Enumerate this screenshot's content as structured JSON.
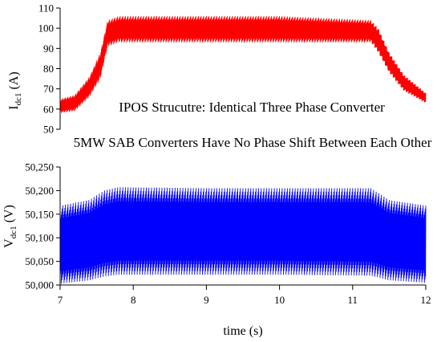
{
  "chart_data": [
    {
      "type": "line",
      "ylabel_main": "I",
      "ylabel_sub": "dc1",
      "ylabel_unit": "(A)",
      "ylim": [
        50,
        110
      ],
      "yticks": [
        50,
        60,
        70,
        80,
        90,
        100,
        110
      ],
      "ytick_labels": [
        "50",
        "60",
        "70",
        "80",
        "90",
        "100",
        "110"
      ],
      "color": "#ff0000",
      "grid": false,
      "series": [
        {
          "envelope": [
            {
              "x": 7.0,
              "min": 58,
              "max": 65
            },
            {
              "x": 7.2,
              "min": 59,
              "max": 67
            },
            {
              "x": 7.4,
              "min": 66,
              "max": 76
            },
            {
              "x": 7.55,
              "min": 75,
              "max": 88
            },
            {
              "x": 7.65,
              "min": 91,
              "max": 104
            },
            {
              "x": 7.8,
              "min": 93,
              "max": 106
            },
            {
              "x": 9.0,
              "min": 93,
              "max": 106
            },
            {
              "x": 10.0,
              "min": 93,
              "max": 106
            },
            {
              "x": 11.25,
              "min": 93,
              "max": 104
            },
            {
              "x": 11.35,
              "min": 88,
              "max": 100
            },
            {
              "x": 11.5,
              "min": 78,
              "max": 88
            },
            {
              "x": 11.7,
              "min": 69,
              "max": 77
            },
            {
              "x": 12.0,
              "min": 63,
              "max": 68
            }
          ]
        }
      ]
    },
    {
      "type": "line",
      "ylabel_main": "V",
      "ylabel_sub": "dc1",
      "ylabel_unit": "(V)",
      "ylim": [
        50000,
        50250
      ],
      "yticks": [
        50000,
        50050,
        50100,
        50150,
        50200,
        50250
      ],
      "ytick_labels": [
        "50,000",
        "50,050",
        "50,100",
        "50,150",
        "50,200",
        "50,250"
      ],
      "xlabel": "time (s)",
      "xlim": [
        7,
        12
      ],
      "xticks": [
        7,
        8,
        9,
        10,
        11,
        12
      ],
      "xtick_labels": [
        "7",
        "8",
        "9",
        "10",
        "11",
        "12"
      ],
      "color": "#0000ff",
      "grid": false,
      "series": [
        {
          "envelope": [
            {
              "x": 7.0,
              "min": 50003,
              "max": 50168
            },
            {
              "x": 7.4,
              "min": 50010,
              "max": 50180
            },
            {
              "x": 7.6,
              "min": 50018,
              "max": 50200
            },
            {
              "x": 7.8,
              "min": 50022,
              "max": 50207
            },
            {
              "x": 9.0,
              "min": 50022,
              "max": 50205
            },
            {
              "x": 10.0,
              "min": 50022,
              "max": 50205
            },
            {
              "x": 11.25,
              "min": 50020,
              "max": 50205
            },
            {
              "x": 11.5,
              "min": 50010,
              "max": 50180
            },
            {
              "x": 12.0,
              "min": 50005,
              "max": 50168
            }
          ]
        }
      ]
    }
  ],
  "annotations": {
    "line1": "IPOS Strucutre: Identical Three Phase Converter",
    "line2": "5MW SAB Converters Have No Phase Shift Between Each Other"
  }
}
